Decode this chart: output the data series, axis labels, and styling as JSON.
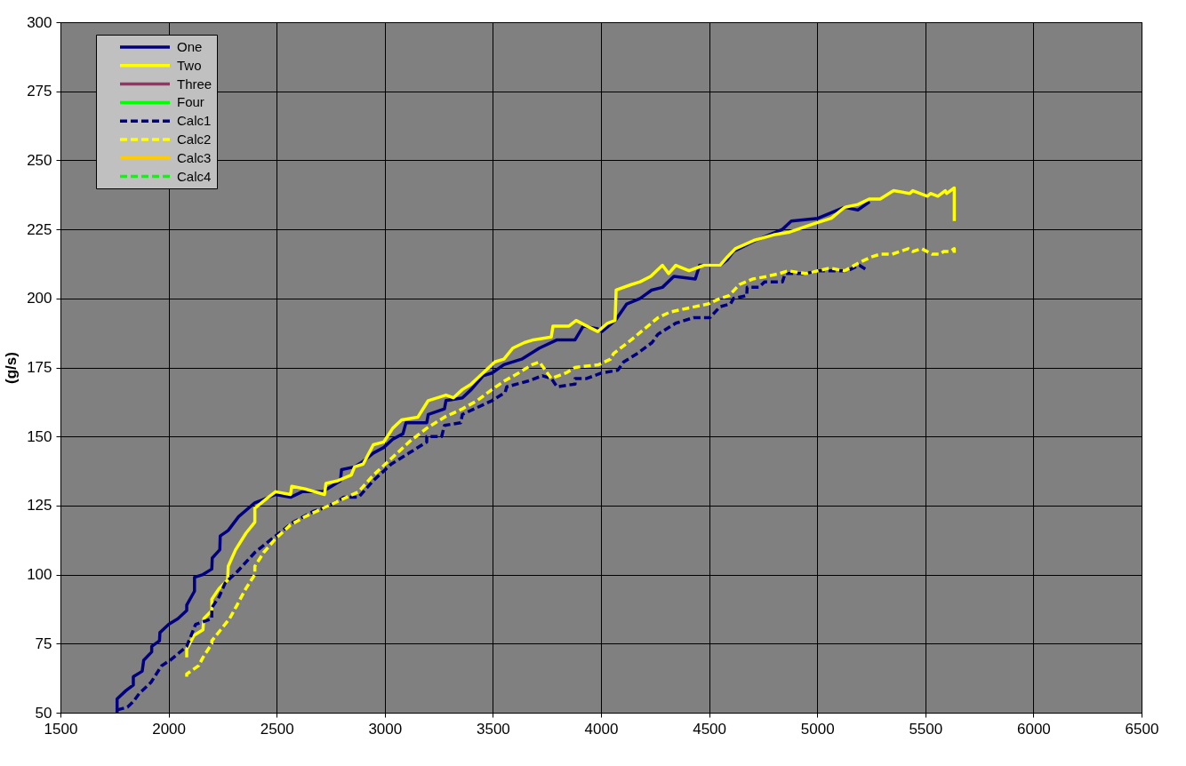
{
  "chart_data": {
    "type": "line",
    "ylabel": "(g/s)",
    "xlim": [
      1500,
      6500
    ],
    "xticks": [
      1500,
      2000,
      2500,
      3000,
      3500,
      4000,
      4500,
      5000,
      5500,
      6000,
      6500
    ],
    "ylim": [
      50,
      300
    ],
    "yticks": [
      50,
      75,
      100,
      125,
      150,
      175,
      200,
      225,
      250,
      275,
      300
    ],
    "grid": true,
    "legend": "top left",
    "series": [
      {
        "name": "One",
        "color": "#000080",
        "line_style": "solid",
        "x": [
          1762,
          1762,
          1803,
          1837,
          1837,
          1878,
          1885,
          1922,
          1922,
          1958,
          1960,
          2001,
          2043,
          2084,
          2084,
          2120,
          2120,
          2159,
          2200,
          2202,
          2237,
          2239,
          2276,
          2324,
          2399,
          2433,
          2495,
          2564,
          2618,
          2713,
          2795,
          2800,
          2860,
          2900,
          2947,
          2995,
          3037,
          3084,
          3098,
          3194,
          3201,
          3276,
          3283,
          3359,
          3400,
          3455,
          3496,
          3551,
          3633,
          3715,
          3797,
          3880,
          3918,
          3984,
          4004,
          4066,
          4119,
          4181,
          4234,
          4284,
          4337,
          4436,
          4456,
          4551,
          4584,
          4613,
          4716,
          4839,
          4880,
          5003,
          5127,
          5188,
          5242
        ],
        "values": [
          50,
          55,
          58,
          60,
          63,
          65,
          69,
          72,
          74,
          76,
          79,
          82,
          84,
          87,
          89,
          94,
          99,
          100,
          102,
          106,
          109,
          114,
          116,
          121,
          126,
          127,
          129,
          128,
          130,
          130,
          134,
          138,
          139,
          141,
          144,
          146,
          149,
          151,
          155,
          155,
          158,
          160,
          163,
          164,
          167,
          172,
          173,
          176,
          178,
          182,
          185,
          185,
          190,
          189,
          188,
          192,
          198,
          200,
          203,
          204,
          208,
          207,
          212,
          212,
          214,
          217,
          221,
          225,
          228,
          229,
          233,
          232,
          235
        ]
      },
      {
        "name": "Two",
        "color": "#ffff00",
        "line_style": "solid",
        "x": [
          2084,
          2084,
          2118,
          2159,
          2163,
          2200,
          2200,
          2234,
          2273,
          2276,
          2310,
          2358,
          2399,
          2399,
          2461,
          2495,
          2564,
          2570,
          2632,
          2721,
          2728,
          2783,
          2845,
          2860,
          2900,
          2947,
          2995,
          3037,
          3078,
          3153,
          3201,
          3283,
          3317,
          3359,
          3400,
          3441,
          3509,
          3551,
          3592,
          3646,
          3688,
          3770,
          3778,
          3852,
          3885,
          3934,
          3985,
          4030,
          4065,
          4070,
          4140,
          4181,
          4230,
          4284,
          4313,
          4346,
          4407,
          4477,
          4551,
          4584,
          4621,
          4707,
          4798,
          4872,
          4983,
          5065,
          5127,
          5188,
          5242,
          5291,
          5353,
          5428,
          5442,
          5510,
          5524,
          5558,
          5592,
          5599,
          5634,
          5634
        ],
        "values": [
          70,
          73,
          78,
          80,
          84,
          87,
          91,
          95,
          98,
          103,
          109,
          115,
          119,
          124,
          128,
          130,
          129,
          132,
          131,
          129,
          133,
          134,
          136,
          139,
          140,
          147,
          148,
          153,
          156,
          157,
          163,
          165,
          164,
          167,
          169,
          172,
          177,
          178,
          182,
          184,
          185,
          186,
          190,
          190,
          192,
          190,
          188,
          191,
          192,
          203,
          205,
          206,
          208,
          212,
          209,
          212,
          210,
          212,
          212,
          215,
          218,
          221,
          223,
          224,
          227,
          229,
          233,
          234,
          236,
          236,
          239,
          238,
          239,
          237,
          238,
          237,
          239,
          238,
          240,
          228
        ]
      },
      {
        "name": "Three",
        "color": "#993366",
        "line_style": "solid"
      },
      {
        "name": "Four",
        "color": "#00ff00",
        "line_style": "solid"
      },
      {
        "name": "Calc1",
        "color": "#000080",
        "line_style": "dashed",
        "x": [
          1762,
          1810,
          1837,
          1865,
          1919,
          1968,
          2008,
          2084,
          2125,
          2200,
          2200,
          2234,
          2262,
          2317,
          2399,
          2495,
          2577,
          2673,
          2714,
          2769,
          2810,
          2879,
          2947,
          3030,
          3112,
          3194,
          3194,
          3263,
          3276,
          3351,
          3359,
          3414,
          3496,
          3557,
          3564,
          3660,
          3729,
          3770,
          3797,
          3880,
          3880,
          3934,
          4003,
          4078,
          4105,
          4167,
          4236,
          4263,
          4345,
          4428,
          4503,
          4551,
          4599,
          4613,
          4674,
          4676,
          4729,
          4757,
          4839,
          4852,
          4947,
          5003,
          5085,
          5140,
          5195,
          5236
        ],
        "values": [
          51,
          52,
          54,
          57,
          61,
          67,
          69,
          74,
          82,
          84,
          88,
          92,
          97,
          101,
          108,
          114,
          119,
          123,
          124,
          126,
          128,
          128,
          134,
          140,
          144,
          148,
          150,
          150,
          154,
          155,
          158,
          160,
          163,
          166,
          168,
          170,
          172,
          171,
          168,
          169,
          171,
          171,
          173,
          174,
          177,
          180,
          184,
          187,
          191,
          193,
          193,
          197,
          198,
          200,
          201,
          204,
          204,
          206,
          206,
          209,
          209,
          210,
          210,
          210,
          212,
          210
        ]
      },
      {
        "name": "Calc2",
        "color": "#ffff00",
        "line_style": "dashed",
        "x": [
          2084,
          2084,
          2139,
          2159,
          2200,
          2200,
          2241,
          2282,
          2317,
          2358,
          2399,
          2399,
          2440,
          2495,
          2564,
          2632,
          2714,
          2769,
          2879,
          2947,
          3030,
          3112,
          3194,
          3276,
          3359,
          3427,
          3496,
          3551,
          3619,
          3681,
          3715,
          3770,
          3838,
          3880,
          3989,
          4044,
          4058,
          4140,
          4263,
          4318,
          4373,
          4434,
          4496,
          4551,
          4592,
          4640,
          4701,
          4770,
          4825,
          4866,
          4947,
          5003,
          5058,
          5127,
          5195,
          5250,
          5291,
          5346,
          5421,
          5442,
          5483,
          5531,
          5565,
          5585,
          5613,
          5634,
          5634
        ],
        "values": [
          63,
          64,
          67,
          70,
          75,
          76,
          80,
          84,
          89,
          95,
          100,
          103,
          108,
          113,
          118,
          121,
          124,
          126,
          130,
          136,
          142,
          148,
          153,
          157,
          160,
          163,
          167,
          170,
          173,
          176,
          177,
          171,
          173,
          175,
          176,
          178,
          180,
          185,
          193,
          195,
          196,
          197,
          198,
          200,
          201,
          205,
          207,
          208,
          209,
          210,
          209,
          210,
          211,
          210,
          213,
          215,
          216,
          216,
          218,
          217,
          218,
          216,
          216,
          217,
          217,
          218,
          216
        ]
      },
      {
        "name": "Calc3",
        "color": "#ffcc00",
        "line_style": "solid"
      },
      {
        "name": "Calc4",
        "color": "#00ff00",
        "line_style": "dashed"
      }
    ]
  }
}
